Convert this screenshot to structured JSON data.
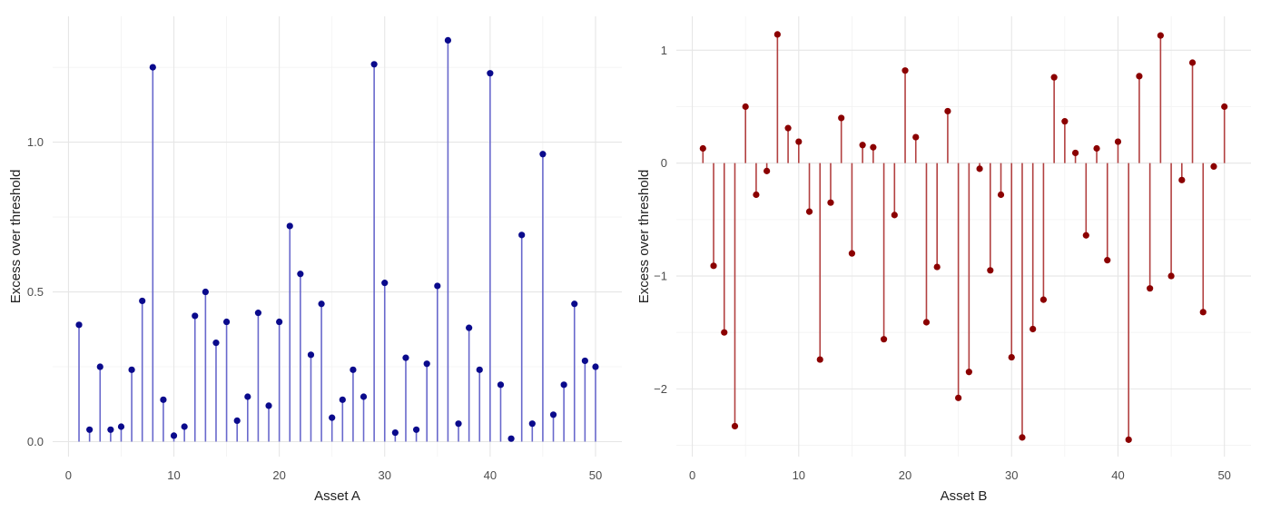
{
  "chart_data": [
    {
      "type": "stem",
      "xlabel": "Asset A",
      "ylabel": "Excess over threshold",
      "xlim": [
        -1.5,
        52.5
      ],
      "ylim": [
        -0.05,
        1.42
      ],
      "xticks": [
        0,
        10,
        20,
        30,
        40,
        50
      ],
      "yticks": [
        0.0,
        0.5,
        1.0
      ],
      "ytick_labels": [
        "0.0",
        "0.5",
        "1.0"
      ],
      "baseline": 0,
      "grid": true,
      "color": "#0a0a8c",
      "stem_color": "#6868cc",
      "x": [
        1,
        2,
        3,
        4,
        5,
        6,
        7,
        8,
        9,
        10,
        11,
        12,
        13,
        14,
        15,
        16,
        17,
        18,
        19,
        20,
        21,
        22,
        23,
        24,
        25,
        26,
        27,
        28,
        29,
        30,
        31,
        32,
        33,
        34,
        35,
        36,
        37,
        38,
        39,
        40,
        41,
        42,
        43,
        44,
        45,
        46,
        47,
        48,
        49,
        50
      ],
      "values": [
        0.39,
        0.04,
        0.25,
        0.04,
        0.05,
        0.24,
        0.47,
        1.25,
        0.14,
        0.02,
        0.05,
        0.42,
        0.5,
        0.33,
        0.4,
        0.07,
        0.15,
        0.43,
        0.12,
        0.4,
        0.72,
        0.56,
        0.29,
        0.46,
        0.08,
        0.14,
        0.24,
        0.15,
        1.26,
        0.53,
        0.03,
        0.28,
        0.04,
        0.26,
        0.52,
        1.34,
        0.06,
        0.38,
        0.24,
        1.23,
        0.19,
        0.01,
        0.69,
        0.06,
        0.96,
        0.09,
        0.19,
        0.46,
        0.27,
        0.25
      ]
    },
    {
      "type": "stem",
      "xlabel": "Asset B",
      "ylabel": "Excess over threshold",
      "xlim": [
        -1.5,
        52.5
      ],
      "ylim": [
        -2.6,
        1.3
      ],
      "xticks": [
        0,
        10,
        20,
        30,
        40,
        50
      ],
      "yticks": [
        -2,
        -1,
        0,
        1
      ],
      "ytick_labels": [
        "−2",
        "−1",
        "0",
        "1"
      ],
      "baseline": 0,
      "grid": true,
      "color": "#8b0000",
      "stem_color": "#b24040",
      "x": [
        1,
        2,
        3,
        4,
        5,
        6,
        7,
        8,
        9,
        10,
        11,
        12,
        13,
        14,
        15,
        16,
        17,
        18,
        19,
        20,
        21,
        22,
        23,
        24,
        25,
        26,
        27,
        28,
        29,
        30,
        31,
        32,
        33,
        34,
        35,
        36,
        37,
        38,
        39,
        40,
        41,
        42,
        43,
        44,
        45,
        46,
        47,
        48,
        49,
        50
      ],
      "values": [
        0.13,
        -0.91,
        -1.5,
        -2.33,
        0.5,
        -0.28,
        -0.07,
        1.14,
        0.31,
        0.19,
        -0.43,
        -1.74,
        -0.35,
        0.4,
        -0.8,
        0.16,
        0.14,
        -1.56,
        -0.46,
        0.82,
        0.23,
        -1.41,
        -0.92,
        0.46,
        -2.08,
        -1.85,
        -0.05,
        -0.95,
        -0.28,
        -1.72,
        -2.43,
        -1.47,
        -1.21,
        0.76,
        0.37,
        0.09,
        -0.64,
        0.13,
        -0.86,
        0.19,
        -2.45,
        0.77,
        -1.11,
        1.13,
        -1.0,
        -0.15,
        0.89,
        -1.32,
        -0.03,
        0.5
      ]
    }
  ]
}
